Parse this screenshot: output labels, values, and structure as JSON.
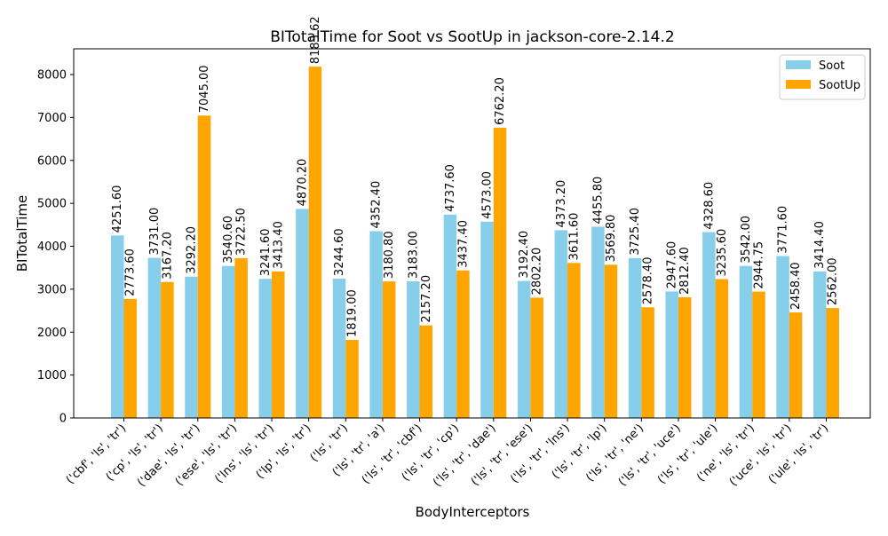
{
  "chart_data": {
    "type": "bar",
    "title": "BITotalTime for Soot vs SootUp in jackson-core-2.14.2",
    "xlabel": "BodyInterceptors",
    "ylabel": "BITotalTime",
    "ylim": [
      0,
      8600
    ],
    "yticks": [
      0,
      1000,
      2000,
      3000,
      4000,
      5000,
      6000,
      7000,
      8000
    ],
    "legend_position": "top-right",
    "categories": [
      "('cbf', 'ls', 'tr')",
      "('cp', 'ls', 'tr')",
      "('dae', 'ls', 'tr')",
      "('ese', 'ls', 'tr')",
      "('lns', 'ls', 'tr')",
      "('lp', 'ls', 'tr')",
      "('ls', 'tr')",
      "('ls', 'tr', 'a')",
      "('ls', 'tr', 'cbf')",
      "('ls', 'tr', 'cp')",
      "('ls', 'tr', 'dae')",
      "('ls', 'tr', 'ese')",
      "('ls', 'tr', 'lns')",
      "('ls', 'tr', 'lp')",
      "('ls', 'tr', 'ne')",
      "('ls', 'tr', 'uce')",
      "('ls', 'tr', 'ule')",
      "('ne', 'ls', 'tr')",
      "('uce', 'ls', 'tr')",
      "('ule', 'ls', 'tr')"
    ],
    "series": [
      {
        "name": "Soot",
        "color": "#87ceeb",
        "values": [
          4251.6,
          3731.0,
          3292.2,
          3540.6,
          3241.6,
          4870.2,
          3244.6,
          4352.4,
          3183.0,
          4737.6,
          4573.0,
          3192.4,
          4373.2,
          4455.8,
          3725.4,
          2947.6,
          4328.6,
          3542.0,
          3771.6,
          3414.4
        ]
      },
      {
        "name": "SootUp",
        "color": "#ffa500",
        "values": [
          2773.6,
          3167.2,
          7045.0,
          3722.5,
          3413.4,
          8183.62,
          1819.0,
          3180.8,
          2157.2,
          3437.4,
          6762.2,
          2802.2,
          3611.6,
          3569.8,
          2578.4,
          2812.4,
          3235.6,
          2944.75,
          2458.4,
          2562.0
        ]
      }
    ],
    "value_labels": {
      "Soot": [
        "4251.60",
        "3731.00",
        "3292.20",
        "3540.60",
        "3241.60",
        "4870.20",
        "3244.60",
        "4352.40",
        "3183.00",
        "4737.60",
        "4573.00",
        "3192.40",
        "4373.20",
        "4455.80",
        "3725.40",
        "2947.60",
        "4328.60",
        "3542.00",
        "3771.60",
        "3414.40"
      ],
      "SootUp": [
        "2773.60",
        "3167.20",
        "7045.00",
        "3722.50",
        "3413.40",
        "8183.62",
        "1819.00",
        "3180.80",
        "2157.20",
        "3437.40",
        "6762.20",
        "2802.20",
        "3611.60",
        "3569.80",
        "2578.40",
        "2812.40",
        "3235.60",
        "2944.75",
        "2458.40",
        "2562.00"
      ]
    }
  }
}
